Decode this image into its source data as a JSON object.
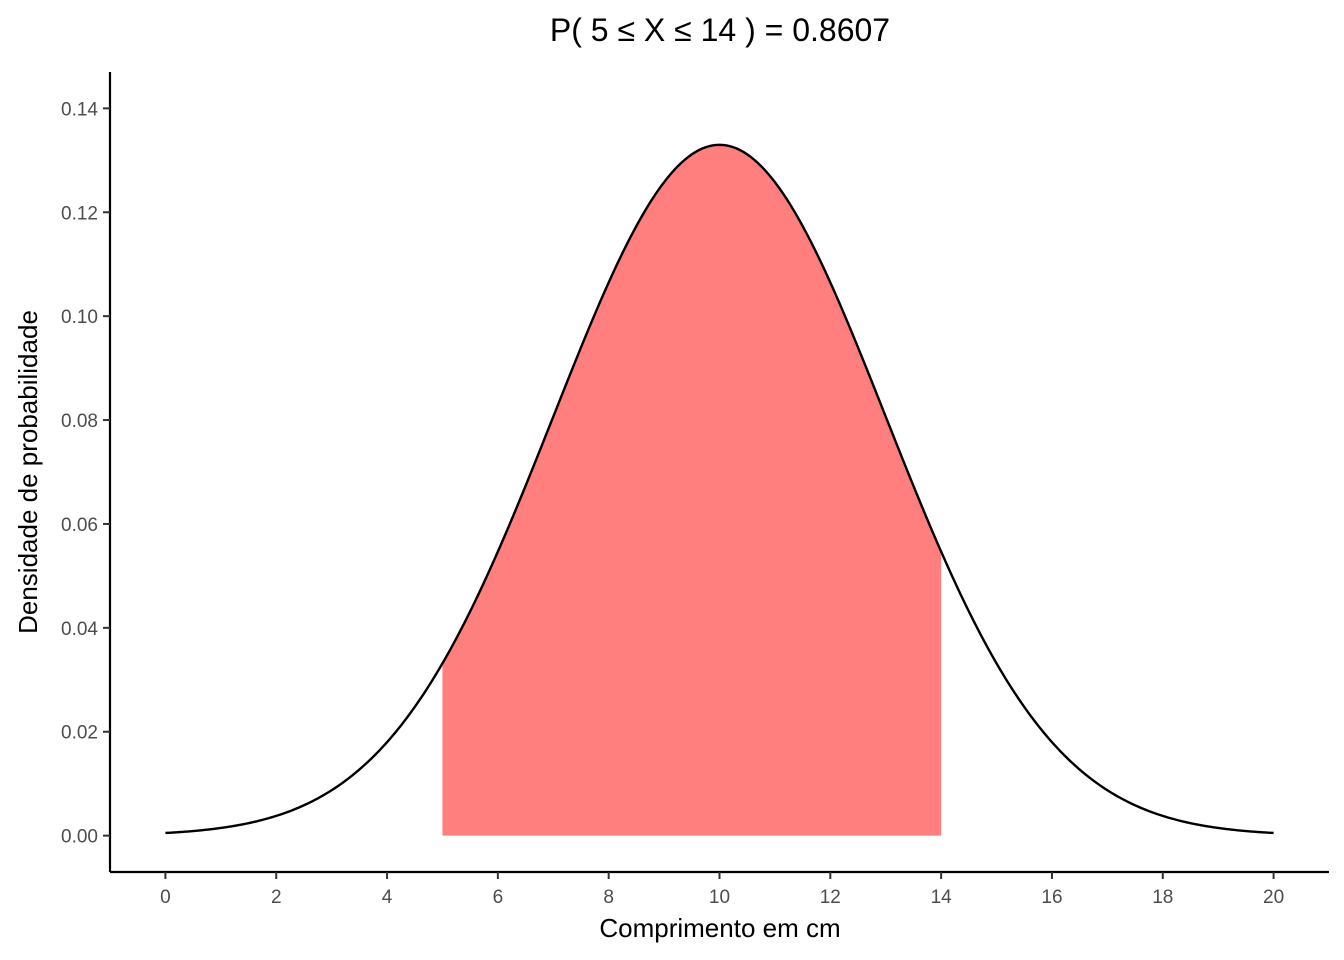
{
  "chart_data": {
    "type": "area",
    "title": "P( 5  ≤  X  ≤  14 ) = 0.8607",
    "xlabel": "Comprimento em cm",
    "ylabel": "Densidade de probabilidade",
    "distribution": {
      "family": "normal",
      "mean": 10,
      "sd": 3
    },
    "x_range": [
      0,
      20
    ],
    "xlim": [
      -1.0,
      21.0
    ],
    "ylim": [
      -0.007,
      0.147
    ],
    "x_ticks": [
      0,
      2,
      4,
      6,
      8,
      10,
      12,
      14,
      16,
      18,
      20
    ],
    "x_tick_labels": [
      "0",
      "2",
      "4",
      "6",
      "8",
      "10",
      "12",
      "14",
      "16",
      "18",
      "20"
    ],
    "y_ticks": [
      0.0,
      0.02,
      0.04,
      0.06,
      0.08,
      0.1,
      0.12,
      0.14
    ],
    "y_tick_labels": [
      "0.00",
      "0.02",
      "0.04",
      "0.06",
      "0.08",
      "0.10",
      "0.12",
      "0.14"
    ],
    "shaded_interval": [
      5,
      14
    ],
    "probability": 0.8607,
    "grid": false,
    "colors": {
      "shaded": "#ff7f7f",
      "curve": "#000000"
    }
  }
}
